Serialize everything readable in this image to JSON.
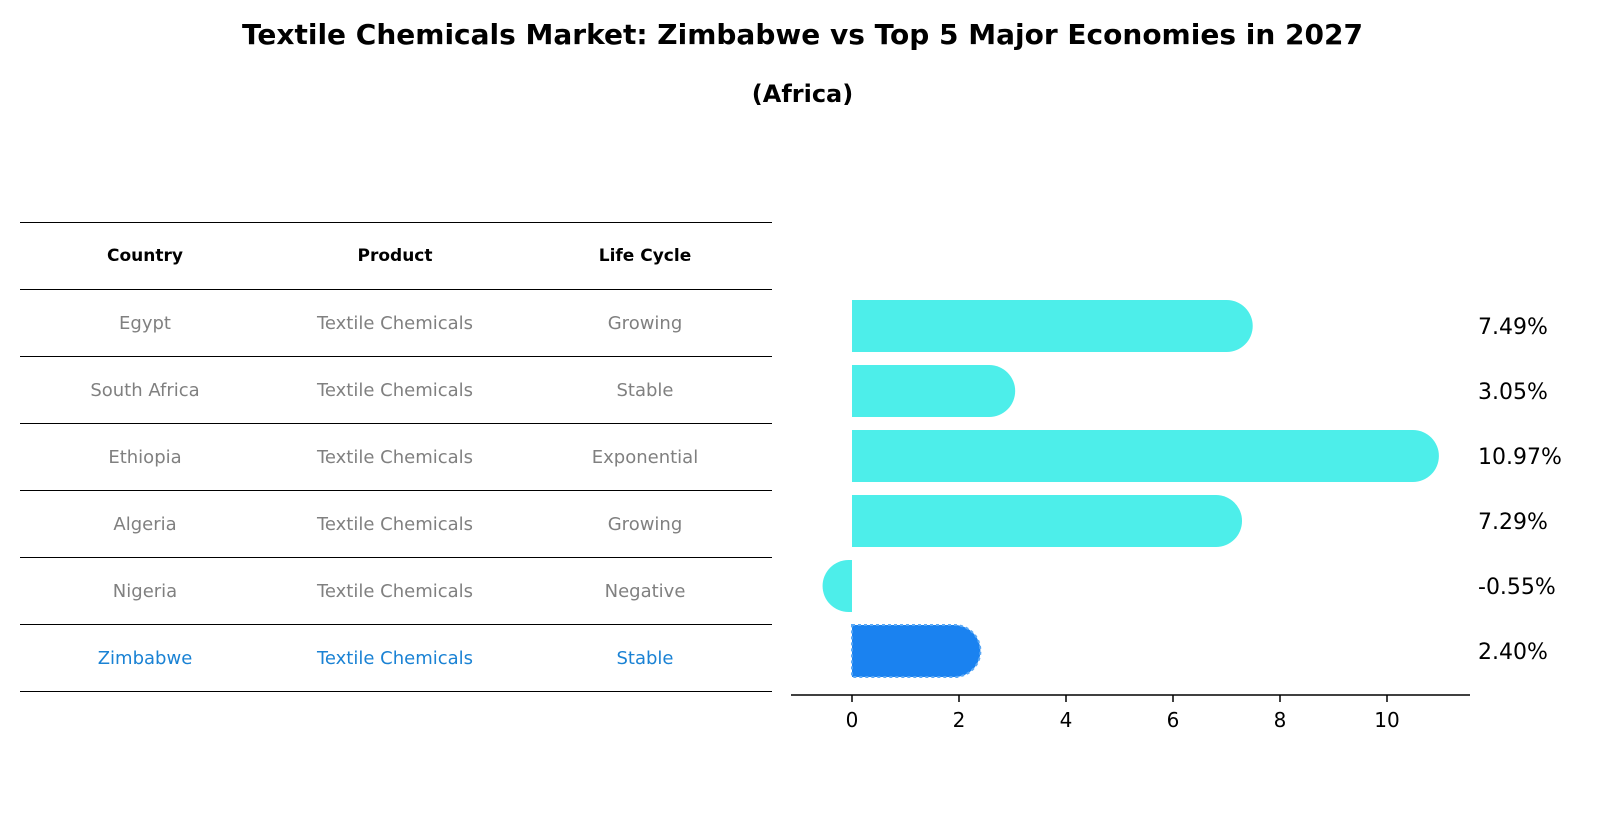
{
  "title": "Textile Chemicals Market: Zimbabwe vs Top 5 Major Economies in 2027",
  "subtitle": "(Africa)",
  "table": {
    "headers": [
      "Country",
      "Product",
      "Life Cycle"
    ],
    "rows": [
      [
        "Egypt",
        "Textile Chemicals",
        "Growing"
      ],
      [
        "South Africa",
        "Textile Chemicals",
        "Stable"
      ],
      [
        "Ethiopia",
        "Textile Chemicals",
        "Exponential"
      ],
      [
        "Algeria",
        "Textile Chemicals",
        "Growing"
      ],
      [
        "Nigeria",
        "Textile Chemicals",
        "Negative"
      ],
      [
        "Zimbabwe",
        "Textile Chemicals",
        "Stable"
      ]
    ]
  },
  "colors": {
    "bar": "#4deeea",
    "highlight": "#1a82f0",
    "highlight_text": "#1a82d4",
    "muted_text": "#808080"
  },
  "chart_data": {
    "type": "bar",
    "orientation": "horizontal",
    "categories": [
      "Egypt",
      "South Africa",
      "Ethiopia",
      "Algeria",
      "Nigeria",
      "Zimbabwe"
    ],
    "values": [
      7.49,
      3.05,
      10.97,
      7.29,
      -0.55,
      2.4
    ],
    "value_labels": [
      "7.49%",
      "3.05%",
      "10.97%",
      "7.29%",
      "-0.55%",
      "2.40%"
    ],
    "highlight": "Zimbabwe",
    "xlim": [
      -1.1,
      11.5
    ],
    "xticks": [
      0,
      2,
      4,
      6,
      8,
      10
    ],
    "xlabel": "",
    "ylabel": ""
  }
}
